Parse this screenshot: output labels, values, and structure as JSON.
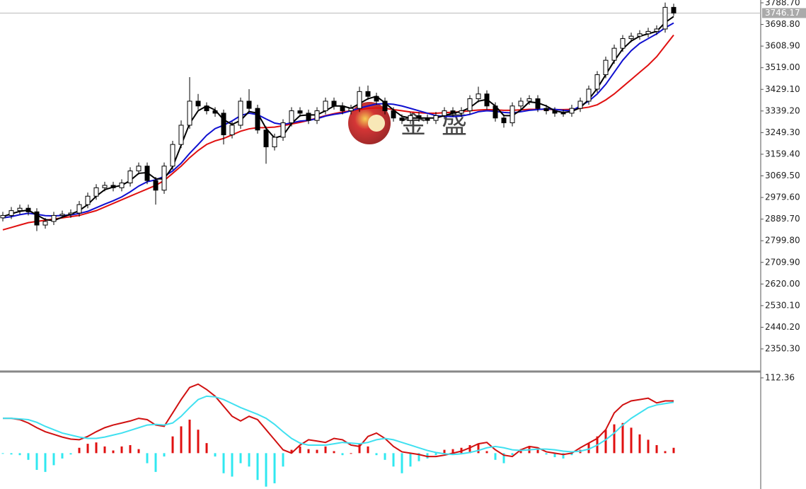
{
  "watermark": "金盛",
  "chart_data": [
    {
      "type": "candlestick",
      "ylim": [
        2259.1,
        3800.5
      ],
      "yticks": [
        {
          "value": 3788.7,
          "label": "3788.70"
        },
        {
          "value": 3698.8,
          "label": "3698.80"
        },
        {
          "value": 3608.9,
          "label": "3608.90"
        },
        {
          "value": 3519,
          "label": "3519.00"
        },
        {
          "value": 3429.1,
          "label": "3429.10"
        },
        {
          "value": 3339.2,
          "label": "3339.20"
        },
        {
          "value": 3249.3,
          "label": "3249.30"
        },
        {
          "value": 3159.4,
          "label": "3159.40"
        },
        {
          "value": 3069.5,
          "label": "3069.50"
        },
        {
          "value": 2979.6,
          "label": "2979.60"
        },
        {
          "value": 2889.7,
          "label": "2889.70"
        },
        {
          "value": 2799.8,
          "label": "2799.80"
        },
        {
          "value": 2709.9,
          "label": "2709.90"
        },
        {
          "value": 2620,
          "label": "2620.00"
        },
        {
          "value": 2530.1,
          "label": "2530.10"
        },
        {
          "value": 2440.2,
          "label": "2440.20"
        },
        {
          "value": 2350.3,
          "label": "2350.30"
        }
      ],
      "current_price": 3746.17,
      "open": [
        2895,
        2905,
        2925,
        2935,
        2920,
        2865,
        2880,
        2905,
        2910,
        2915,
        2950,
        2985,
        3020,
        3030,
        3020,
        3040,
        3090,
        3110,
        3050,
        3010,
        3110,
        3200,
        3280,
        3380,
        3360,
        3340,
        3330,
        3240,
        3280,
        3380,
        3350,
        3260,
        3190,
        3230,
        3290,
        3340,
        3330,
        3300,
        3340,
        3380,
        3360,
        3340,
        3350,
        3420,
        3400,
        3380,
        3340,
        3310,
        3300,
        3320,
        3310,
        3300,
        3320,
        3340,
        3330,
        3340,
        3390,
        3410,
        3360,
        3310,
        3290,
        3360,
        3380,
        3390,
        3350,
        3340,
        3330,
        3330,
        3350,
        3380,
        3430,
        3490,
        3550,
        3600,
        3640,
        3650,
        3660,
        3670,
        3680,
        3770
      ],
      "high": [
        2920,
        2940,
        2950,
        2950,
        2935,
        2895,
        2920,
        2925,
        2930,
        2965,
        3000,
        3035,
        3045,
        3045,
        3055,
        3105,
        3125,
        3125,
        3065,
        3125,
        3215,
        3300,
        3480,
        3410,
        3375,
        3355,
        3345,
        3295,
        3395,
        3430,
        3365,
        3275,
        3245,
        3305,
        3355,
        3355,
        3345,
        3355,
        3395,
        3395,
        3375,
        3365,
        3440,
        3445,
        3415,
        3395,
        3355,
        3325,
        3335,
        3335,
        3325,
        3335,
        3355,
        3355,
        3355,
        3405,
        3440,
        3425,
        3375,
        3325,
        3375,
        3395,
        3405,
        3405,
        3365,
        3355,
        3345,
        3365,
        3395,
        3445,
        3505,
        3565,
        3615,
        3655,
        3665,
        3675,
        3685,
        3695,
        3790,
        3785
      ],
      "low": [
        2880,
        2890,
        2910,
        2905,
        2840,
        2850,
        2865,
        2895,
        2895,
        2900,
        2935,
        2970,
        3005,
        3005,
        3005,
        3025,
        3075,
        3035,
        2950,
        2995,
        3095,
        3185,
        3265,
        3345,
        3325,
        3315,
        3200,
        3225,
        3265,
        3335,
        3245,
        3120,
        3175,
        3215,
        3275,
        3315,
        3285,
        3285,
        3325,
        3345,
        3325,
        3325,
        3335,
        3385,
        3365,
        3325,
        3295,
        3285,
        3285,
        3295,
        3285,
        3285,
        3305,
        3315,
        3315,
        3325,
        3375,
        3345,
        3295,
        3270,
        3275,
        3345,
        3365,
        3335,
        3325,
        3315,
        3315,
        3315,
        3335,
        3365,
        3415,
        3475,
        3535,
        3585,
        3625,
        3635,
        3645,
        3655,
        3665,
        3735
      ],
      "close": [
        2905,
        2925,
        2935,
        2920,
        2865,
        2880,
        2905,
        2910,
        2915,
        2950,
        2985,
        3020,
        3030,
        3020,
        3040,
        3090,
        3110,
        3050,
        3010,
        3110,
        3200,
        3280,
        3380,
        3360,
        3340,
        3330,
        3240,
        3280,
        3380,
        3350,
        3260,
        3190,
        3230,
        3290,
        3340,
        3330,
        3300,
        3340,
        3380,
        3360,
        3340,
        3350,
        3420,
        3400,
        3380,
        3340,
        3310,
        3300,
        3320,
        3310,
        3300,
        3320,
        3340,
        3330,
        3340,
        3390,
        3410,
        3360,
        3310,
        3290,
        3360,
        3380,
        3390,
        3350,
        3340,
        3330,
        3330,
        3350,
        3380,
        3430,
        3490,
        3550,
        3600,
        3640,
        3650,
        3660,
        3670,
        3680,
        3770,
        3746.17
      ],
      "series": [
        {
          "color": "#e01010",
          "values": [
            2845,
            2855,
            2865,
            2875,
            2880,
            2885,
            2890,
            2895,
            2900,
            2905,
            2915,
            2925,
            2940,
            2955,
            2970,
            2985,
            3000,
            3015,
            3030,
            3050,
            3080,
            3110,
            3145,
            3175,
            3200,
            3215,
            3225,
            3240,
            3255,
            3265,
            3270,
            3270,
            3272,
            3278,
            3285,
            3292,
            3300,
            3310,
            3320,
            3328,
            3335,
            3340,
            3345,
            3350,
            3352,
            3350,
            3345,
            3340,
            3335,
            3332,
            3330,
            3330,
            3332,
            3334,
            3336,
            3340,
            3343,
            3345,
            3344,
            3342,
            3342,
            3344,
            3346,
            3346,
            3346,
            3345,
            3345,
            3346,
            3350,
            3355,
            3365,
            3385,
            3410,
            3440,
            3470,
            3500,
            3530,
            3565,
            3610,
            3655
          ]
        },
        {
          "color": "#1010d0",
          "values": [
            2895,
            2900,
            2908,
            2914,
            2910,
            2904,
            2903,
            2905,
            2907,
            2913,
            2922,
            2937,
            2952,
            2966,
            2982,
            3003,
            3027,
            3045,
            3053,
            3067,
            3090,
            3122,
            3163,
            3200,
            3238,
            3266,
            3280,
            3298,
            3320,
            3330,
            3324,
            3306,
            3289,
            3283,
            3290,
            3297,
            3300,
            3307,
            3318,
            3325,
            3330,
            3340,
            3351,
            3360,
            3368,
            3370,
            3367,
            3360,
            3350,
            3340,
            3330,
            3320,
            3317,
            3316,
            3318,
            3325,
            3336,
            3340,
            3338,
            3333,
            3331,
            3336,
            3342,
            3345,
            3348,
            3346,
            3342,
            3340,
            3360,
            3380,
            3410,
            3450,
            3500,
            3550,
            3590,
            3620,
            3640,
            3660,
            3685,
            3705
          ]
        },
        {
          "color": "#000000",
          "values": [
            2900,
            2912,
            2922,
            2927,
            2907,
            2888,
            2883,
            2898,
            2910,
            2925,
            2950,
            2985,
            3012,
            3023,
            3030,
            3050,
            3080,
            3083,
            3057,
            3057,
            3107,
            3197,
            3287,
            3340,
            3360,
            3343,
            3303,
            3283,
            3300,
            3337,
            3330,
            3267,
            3227,
            3237,
            3287,
            3320,
            3323,
            3323,
            3340,
            3360,
            3360,
            3350,
            3370,
            3390,
            3400,
            3373,
            3343,
            3317,
            3310,
            3310,
            3310,
            3310,
            3320,
            3330,
            3337,
            3353,
            3380,
            3387,
            3360,
            3320,
            3320,
            3343,
            3377,
            3373,
            3360,
            3340,
            3333,
            3337,
            3353,
            3387,
            3433,
            3490,
            3547,
            3597,
            3630,
            3650,
            3660,
            3670,
            3707,
            3732
          ]
        }
      ]
    },
    {
      "type": "macd",
      "ylim": [
        -53.5,
        119.7
      ],
      "yticks": [
        112.36
      ],
      "positive_color": "#e01010",
      "negative_color": "#30e8f0",
      "histogram": [
        -1,
        -2,
        -3,
        -10,
        -25,
        -28,
        -18,
        -8,
        -2,
        8,
        14,
        16,
        10,
        4,
        10,
        12,
        6,
        -15,
        -28,
        -5,
        25,
        40,
        50,
        35,
        15,
        -5,
        -30,
        -35,
        -15,
        -20,
        -40,
        -50,
        -45,
        -20,
        5,
        10,
        6,
        5,
        10,
        3,
        -3,
        0,
        15,
        10,
        -3,
        -10,
        -20,
        -30,
        -20,
        -12,
        -8,
        -3,
        5,
        6,
        8,
        12,
        14,
        3,
        -10,
        -15,
        -3,
        6,
        10,
        5,
        -2,
        -6,
        -8,
        -3,
        5,
        15,
        25,
        35,
        43,
        45,
        38,
        28,
        20,
        12,
        3,
        8
      ],
      "series": [
        {
          "color": "#d01010",
          "values": [
            52,
            52,
            50,
            45,
            38,
            32,
            28,
            24,
            21,
            20,
            25,
            32,
            38,
            42,
            45,
            48,
            52,
            50,
            42,
            40,
            60,
            80,
            98,
            103,
            95,
            85,
            70,
            55,
            48,
            55,
            50,
            35,
            20,
            5,
            0,
            12,
            20,
            18,
            16,
            22,
            20,
            12,
            10,
            25,
            30,
            22,
            10,
            2,
            0,
            -2,
            -5,
            -5,
            -3,
            0,
            3,
            8,
            14,
            16,
            5,
            -3,
            -5,
            5,
            10,
            8,
            2,
            0,
            -2,
            0,
            8,
            15,
            22,
            35,
            60,
            72,
            78,
            80,
            82,
            75,
            78,
            78
          ]
        },
        {
          "color": "#40e0f0",
          "values": [
            52,
            52,
            51,
            50,
            46,
            40,
            35,
            30,
            27,
            24,
            22,
            22,
            24,
            27,
            30,
            34,
            38,
            42,
            43,
            42,
            45,
            55,
            68,
            80,
            85,
            84,
            80,
            74,
            68,
            63,
            58,
            52,
            43,
            32,
            22,
            15,
            12,
            12,
            12,
            14,
            16,
            15,
            14,
            16,
            20,
            22,
            20,
            16,
            12,
            8,
            4,
            1,
            -1,
            -2,
            -1,
            1,
            4,
            8,
            10,
            8,
            5,
            4,
            5,
            6,
            6,
            5,
            3,
            2,
            3,
            6,
            12,
            20,
            30,
            42,
            52,
            60,
            68,
            72,
            74,
            76
          ]
        }
      ]
    }
  ]
}
